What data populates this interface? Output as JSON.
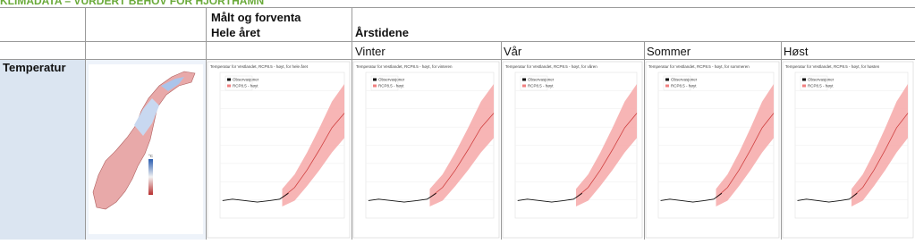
{
  "header": {
    "title": "KLIMADATA – VURDERT BEHOV FOR HJORTHAMN"
  },
  "table": {
    "headers": [
      "Målt og forventa",
      "Hele året",
      "Årstidene"
    ],
    "seasons": [
      "Vinter",
      "Vår",
      "Sommer",
      "Høst"
    ],
    "rows": [
      {
        "label": "Temperatur",
        "map_legend_unit": "°C",
        "charts": [
          {
            "title": "Temperatur for Vestlandet, RCP8.5 - høyt, for hele året",
            "legend": [
              "Observasjoner",
              "RCP8.5 - høyt"
            ]
          },
          {
            "title": "Temperatur for Vestlandet, RCP8.5 - høyt, for vinteren",
            "legend": [
              "Observasjoner",
              "RCP8.5 - høyt"
            ]
          },
          {
            "title": "Temperatur for Vestlandet, RCP8.5 - høyt, for våren",
            "legend": [
              "Observasjoner",
              "RCP8.5 - høyt"
            ]
          },
          {
            "title": "Temperatur for Vestlandet, RCP8.5 - høyt, for sommeren",
            "legend": [
              "Observasjoner",
              "RCP8.5 - høyt"
            ]
          },
          {
            "title": "Temperatur for Vestlandet, RCP8.5 - høyt, for høsten",
            "legend": [
              "Observasjoner",
              "RCP8.5 - høyt"
            ]
          }
        ]
      }
    ]
  }
}
